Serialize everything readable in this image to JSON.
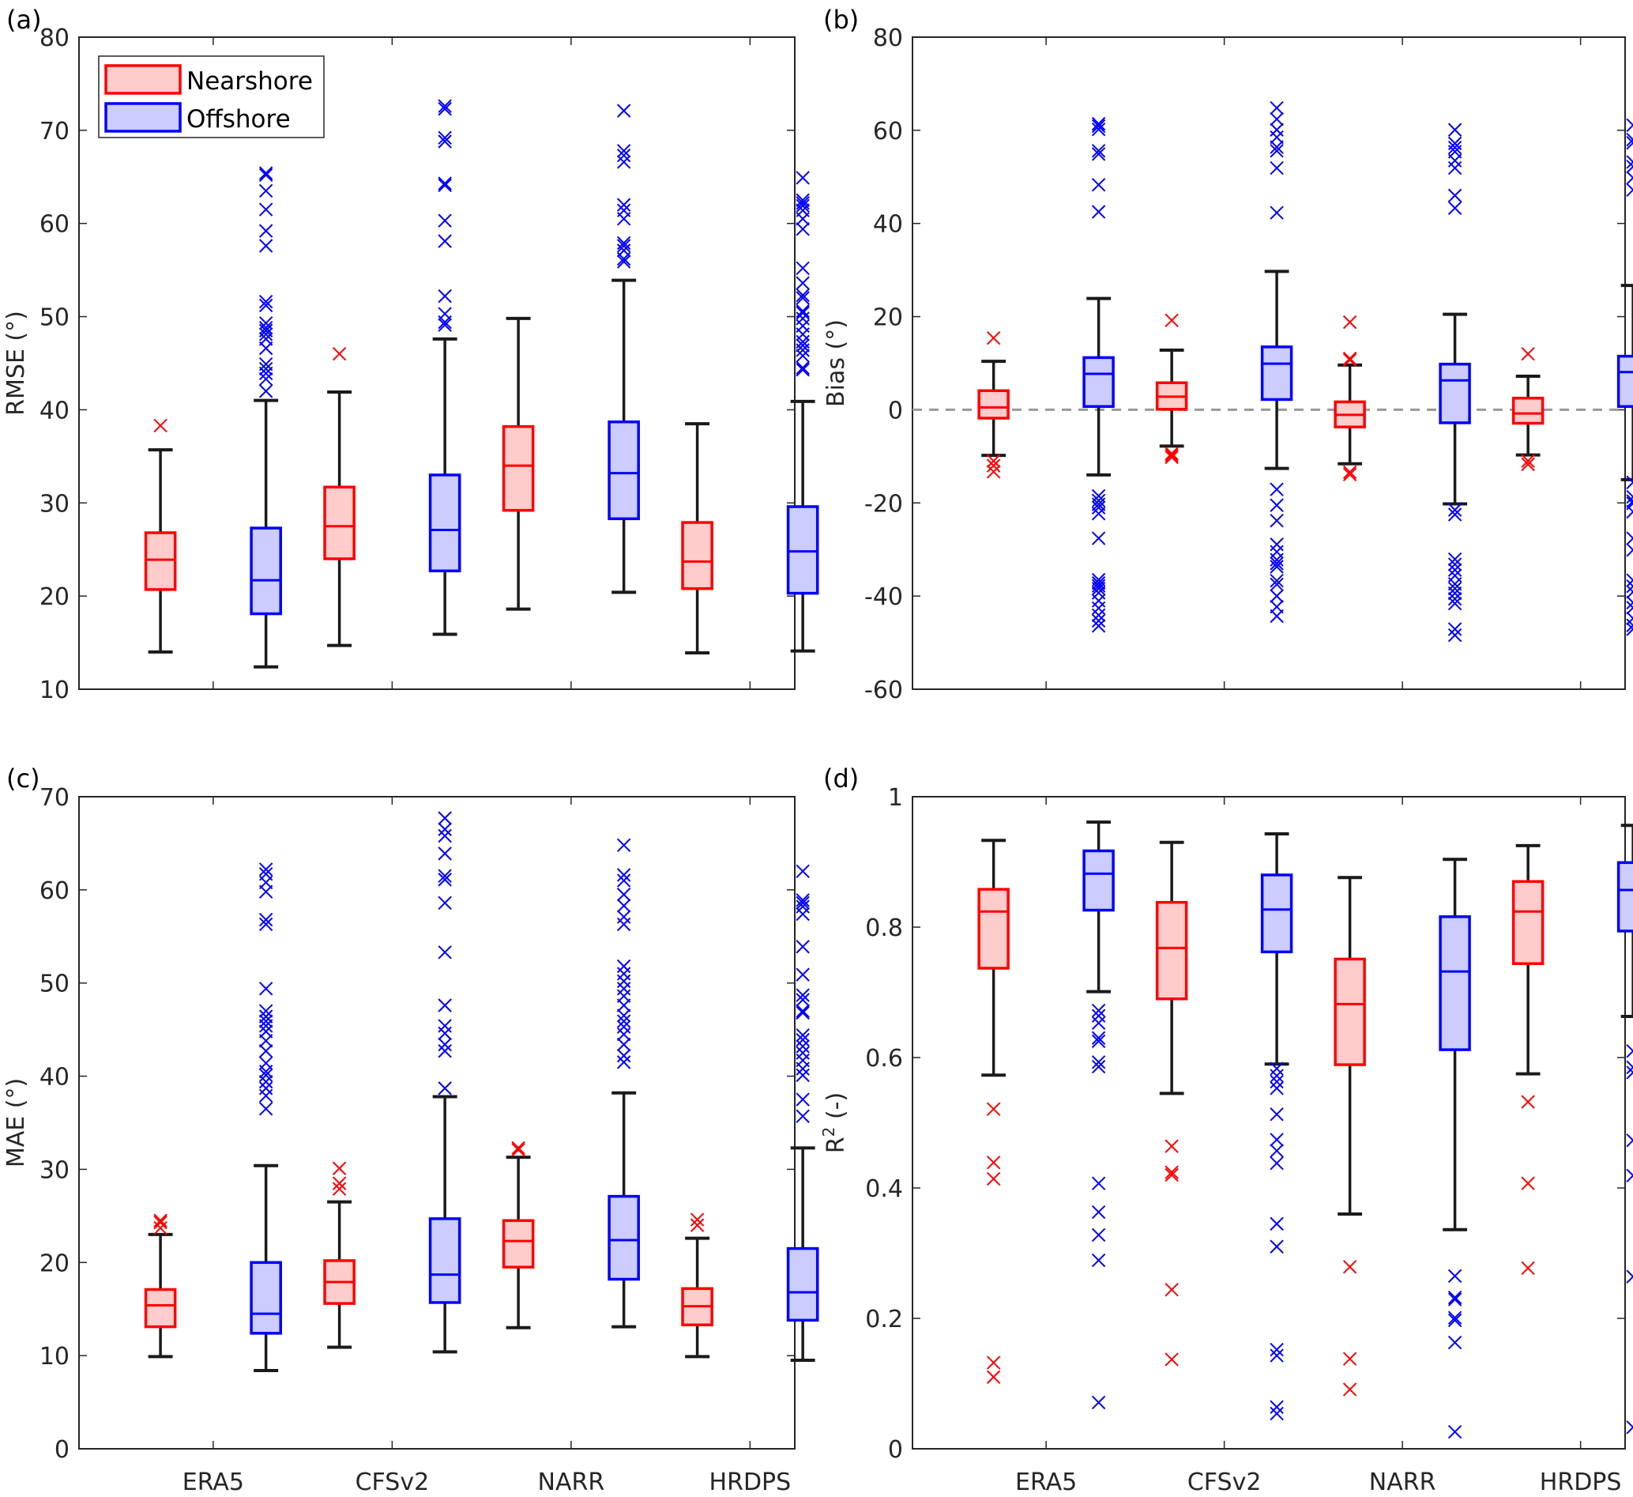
{
  "colors": {
    "nearshore_edge": "#ff0000",
    "nearshore_fill": "#ffcccc",
    "offshore_edge": "#0000ff",
    "offshore_fill": "#ccccff",
    "whisker": "#1a1a1a",
    "zero_line": "#999999"
  },
  "legend": {
    "items": [
      {
        "label": "Nearshore",
        "series": "nearshore"
      },
      {
        "label": "Offshore",
        "series": "offshore"
      }
    ],
    "placement": "top-left of panel (a)"
  },
  "chart_data": [
    {
      "type": "box",
      "panel": "(a)",
      "title": "",
      "xlabel": "",
      "ylabel": "RMSE (°)",
      "ylim": [
        10,
        80
      ],
      "yticks": [
        10,
        20,
        30,
        40,
        50,
        60,
        70,
        80
      ],
      "categories": [
        "ERA5",
        "CFSv2",
        "NARR",
        "HRDPS"
      ],
      "show_xticklabels": false,
      "zero_line": false,
      "series": [
        {
          "name": "Nearshore",
          "boxes": [
            {
              "whisker_low": 14.0,
              "q1": 20.7,
              "median": 23.9,
              "q3": 26.8,
              "whisker_high": 35.7,
              "outliers": [
                38.3
              ]
            },
            {
              "whisker_low": 14.7,
              "q1": 24.0,
              "median": 27.5,
              "q3": 31.7,
              "whisker_high": 41.9,
              "outliers": [
                46.0
              ]
            },
            {
              "whisker_low": 18.6,
              "q1": 29.2,
              "median": 34.0,
              "q3": 38.2,
              "whisker_high": 49.8,
              "outliers": []
            },
            {
              "whisker_low": 13.9,
              "q1": 20.8,
              "median": 23.7,
              "q3": 27.9,
              "whisker_high": 38.5,
              "outliers": []
            }
          ]
        },
        {
          "name": "Offshore",
          "boxes": [
            {
              "whisker_low": 12.4,
              "q1": 18.1,
              "median": 21.7,
              "q3": 27.3,
              "whisker_high": 41.0,
              "outliers": [
                42.0,
                43.3,
                43.9,
                44.4,
                44.9,
                46.6,
                47.6,
                48.1,
                48.5,
                48.8,
                49.3,
                51.2,
                51.6,
                57.6,
                59.2,
                61.5,
                63.5,
                65.2,
                65.4
              ]
            },
            {
              "whisker_low": 15.9,
              "q1": 22.7,
              "median": 27.1,
              "q3": 33.0,
              "whisker_high": 47.6,
              "outliers": [
                49.1,
                49.4,
                50.3,
                52.2,
                58.1,
                60.3,
                64.1,
                64.3,
                68.8,
                69.2,
                72.3,
                72.6
              ]
            },
            {
              "whisker_low": 20.4,
              "q1": 28.3,
              "median": 33.2,
              "q3": 38.7,
              "whisker_high": 53.9,
              "outliers": [
                55.9,
                56.2,
                57.1,
                57.6,
                57.9,
                60.5,
                61.4,
                62.0,
                66.6,
                67.3,
                67.8,
                72.1
              ]
            },
            {
              "whisker_low": 14.1,
              "q1": 20.3,
              "median": 24.8,
              "q3": 29.6,
              "whisker_high": 40.9,
              "outliers": [
                44.3,
                44.5,
                45.8,
                46.4,
                46.9,
                47.3,
                48.1,
                49.0,
                49.8,
                50.4,
                50.6,
                52.0,
                52.3,
                53.6,
                55.2,
                59.4,
                60.5,
                61.4,
                61.9,
                62.2,
                62.5,
                64.9
              ]
            }
          ]
        }
      ]
    },
    {
      "type": "box",
      "panel": "(b)",
      "title": "",
      "xlabel": "",
      "ylabel": "Bias (°)",
      "ylim": [
        -60,
        80
      ],
      "yticks": [
        -60,
        -40,
        -20,
        0,
        20,
        40,
        60,
        80
      ],
      "categories": [
        "ERA5",
        "CFSv2",
        "NARR",
        "HRDPS"
      ],
      "show_xticklabels": false,
      "zero_line": true,
      "series": [
        {
          "name": "Nearshore",
          "boxes": [
            {
              "whisker_low": -9.8,
              "q1": -1.8,
              "median": 0.5,
              "q3": 4.1,
              "whisker_high": 10.4,
              "outliers": [
                15.4,
                -11.0,
                -12.0,
                -13.3
              ]
            },
            {
              "whisker_low": -7.8,
              "q1": 0.1,
              "median": 2.8,
              "q3": 5.8,
              "whisker_high": 12.8,
              "outliers": [
                19.2,
                -9.4,
                -9.8,
                -10.2
              ]
            },
            {
              "whisker_low": -11.6,
              "q1": -3.7,
              "median": -1.1,
              "q3": 1.7,
              "whisker_high": 9.6,
              "outliers": [
                18.8,
                11.0,
                10.7,
                -13.4,
                -13.9
              ]
            },
            {
              "whisker_low": -9.7,
              "q1": -2.9,
              "median": -0.8,
              "q3": 2.5,
              "whisker_high": 7.2,
              "outliers": [
                12.0,
                -11.0,
                -11.7
              ]
            }
          ]
        },
        {
          "name": "Offshore",
          "boxes": [
            {
              "whisker_low": -14.0,
              "q1": 0.7,
              "median": 7.7,
              "q3": 11.2,
              "whisker_high": 23.9,
              "outliers": [
                42.5,
                48.3,
                54.9,
                55.6,
                60.2,
                60.9,
                61.4,
                -18.5,
                -19.5,
                -20.3,
                -21.0,
                -22.3,
                -27.6,
                -36.5,
                -37.2,
                -37.8,
                -38.4,
                -39.3,
                -41.0,
                -42.6,
                -44.1,
                -45.3,
                -46.4
              ]
            },
            {
              "whisker_low": -12.6,
              "q1": 2.2,
              "median": 9.9,
              "q3": 13.5,
              "whisker_high": 29.7,
              "outliers": [
                42.3,
                51.9,
                55.6,
                56.4,
                58.5,
                60.1,
                62.4,
                64.8,
                -17.1,
                -20.5,
                -23.8,
                -28.9,
                -30.5,
                -32.2,
                -33.0,
                -33.7,
                -36.7,
                -37.5,
                -40.0,
                -42.3,
                -44.3
              ]
            },
            {
              "whisker_low": -20.2,
              "q1": -2.8,
              "median": 6.3,
              "q3": 9.8,
              "whisker_high": 20.5,
              "outliers": [
                43.3,
                46.0,
                51.9,
                53.5,
                55.4,
                56.3,
                57.2,
                60.1,
                -21.5,
                -22.5,
                -32.1,
                -33.2,
                -34.4,
                -35.6,
                -37.4,
                -38.4,
                -39.4,
                -40.6,
                -41.6,
                -47.1,
                -48.4
              ]
            },
            {
              "whisker_low": -15.0,
              "q1": 0.7,
              "median": 8.1,
              "q3": 11.5,
              "whisker_high": 26.7,
              "outliers": [
                47.2,
                49.8,
                52.2,
                53.2,
                57.3,
                58.0,
                61.1,
                -15.6,
                -18.7,
                -19.6,
                -20.1,
                -21.9,
                -27.6,
                -30.1,
                -36.6,
                -37.9,
                -39.1,
                -41.4,
                -42.5,
                -44.8,
                -46.3,
                -47.1
              ]
            }
          ]
        }
      ]
    },
    {
      "type": "box",
      "panel": "(c)",
      "title": "",
      "xlabel": "",
      "ylabel": "MAE (°)",
      "ylim": [
        0,
        70
      ],
      "yticks": [
        0,
        10,
        20,
        30,
        40,
        50,
        60,
        70
      ],
      "categories": [
        "ERA5",
        "CFSv2",
        "NARR",
        "HRDPS"
      ],
      "show_xticklabels": true,
      "zero_line": false,
      "series": [
        {
          "name": "Nearshore",
          "boxes": [
            {
              "whisker_low": 9.9,
              "q1": 13.1,
              "median": 15.4,
              "q3": 17.1,
              "whisker_high": 23.0,
              "outliers": [
                23.7,
                24.3,
                24.5
              ]
            },
            {
              "whisker_low": 10.9,
              "q1": 15.6,
              "median": 17.9,
              "q3": 20.2,
              "whisker_high": 26.5,
              "outliers": [
                27.9,
                28.5,
                30.1
              ]
            },
            {
              "whisker_low": 13.0,
              "q1": 19.5,
              "median": 22.3,
              "q3": 24.5,
              "whisker_high": 31.3,
              "outliers": [
                32.1,
                32.3
              ]
            },
            {
              "whisker_low": 9.9,
              "q1": 13.3,
              "median": 15.3,
              "q3": 17.2,
              "whisker_high": 22.6,
              "outliers": [
                24.0,
                24.6
              ]
            }
          ]
        },
        {
          "name": "Offshore",
          "boxes": [
            {
              "whisker_low": 8.4,
              "q1": 12.4,
              "median": 14.5,
              "q3": 20.0,
              "whisker_high": 30.4,
              "outliers": [
                36.5,
                37.9,
                38.7,
                39.4,
                40.1,
                40.5,
                41.4,
                42.7,
                43.8,
                44.8,
                45.4,
                45.9,
                46.4,
                47.0,
                49.4,
                56.3,
                56.8,
                59.8,
                60.8,
                61.7,
                62.2
              ]
            },
            {
              "whisker_low": 10.4,
              "q1": 15.7,
              "median": 18.7,
              "q3": 24.7,
              "whisker_high": 37.8,
              "outliers": [
                38.7,
                42.7,
                43.4,
                44.6,
                45.4,
                47.6,
                53.3,
                58.6,
                61.1,
                61.5,
                63.9,
                65.8,
                66.5,
                67.7
              ]
            },
            {
              "whisker_low": 13.1,
              "q1": 18.2,
              "median": 22.4,
              "q3": 27.1,
              "whisker_high": 38.2,
              "outliers": [
                41.5,
                42.2,
                43.4,
                44.5,
                45.3,
                45.9,
                46.5,
                47.6,
                48.6,
                49.4,
                50.2,
                51.0,
                51.8,
                56.3,
                57.1,
                58.3,
                59.5,
                61.0,
                61.6,
                64.8
              ]
            },
            {
              "whisker_low": 9.5,
              "q1": 13.8,
              "median": 16.8,
              "q3": 21.5,
              "whisker_high": 32.3,
              "outliers": [
                35.7,
                37.5,
                40.1,
                40.8,
                41.7,
                42.5,
                43.2,
                43.9,
                44.4,
                46.8,
                47.0,
                48.2,
                48.7,
                50.9,
                53.9,
                57.4,
                58.2,
                58.6,
                58.9,
                62.0
              ]
            }
          ]
        }
      ]
    },
    {
      "type": "box",
      "panel": "(d)",
      "title": "",
      "xlabel": "",
      "ylabel": "R",
      "ylabel_superscript": "2",
      "ylabel_suffix": " (-)",
      "ylim": [
        0,
        1
      ],
      "yticks": [
        0,
        0.2,
        0.4,
        0.6,
        0.8,
        1
      ],
      "categories": [
        "ERA5",
        "CFSv2",
        "NARR",
        "HRDPS"
      ],
      "show_xticklabels": true,
      "zero_line": false,
      "series": [
        {
          "name": "Nearshore",
          "boxes": [
            {
              "whisker_low": 0.573,
              "q1": 0.737,
              "median": 0.824,
              "q3": 0.858,
              "whisker_high": 0.933,
              "outliers": [
                0.521,
                0.439,
                0.414,
                0.132,
                0.11
              ]
            },
            {
              "whisker_low": 0.545,
              "q1": 0.69,
              "median": 0.768,
              "q3": 0.838,
              "whisker_high": 0.93,
              "outliers": [
                0.464,
                0.424,
                0.42,
                0.244,
                0.137
              ]
            },
            {
              "whisker_low": 0.36,
              "q1": 0.589,
              "median": 0.682,
              "q3": 0.751,
              "whisker_high": 0.876,
              "outliers": [
                0.279,
                0.138,
                0.091
              ]
            },
            {
              "whisker_low": 0.575,
              "q1": 0.744,
              "median": 0.824,
              "q3": 0.87,
              "whisker_high": 0.925,
              "outliers": [
                0.532,
                0.407,
                0.277
              ]
            }
          ]
        },
        {
          "name": "Offshore",
          "boxes": [
            {
              "whisker_low": 0.701,
              "q1": 0.826,
              "median": 0.882,
              "q3": 0.917,
              "whisker_high": 0.961,
              "outliers": [
                0.672,
                0.664,
                0.653,
                0.63,
                0.625,
                0.593,
                0.586,
                0.407,
                0.363,
                0.328,
                0.289,
                0.071
              ]
            },
            {
              "whisker_low": 0.59,
              "q1": 0.762,
              "median": 0.827,
              "q3": 0.88,
              "whisker_high": 0.943,
              "outliers": [
                0.583,
                0.572,
                0.563,
                0.553,
                0.513,
                0.474,
                0.457,
                0.438,
                0.345,
                0.31,
                0.152,
                0.143,
                0.064,
                0.054
              ]
            },
            {
              "whisker_low": 0.336,
              "q1": 0.612,
              "median": 0.732,
              "q3": 0.816,
              "whisker_high": 0.904,
              "outliers": [
                0.265,
                0.232,
                0.229,
                0.201,
                0.197,
                0.163,
                0.026
              ]
            },
            {
              "whisker_low": 0.663,
              "q1": 0.794,
              "median": 0.857,
              "q3": 0.899,
              "whisker_high": 0.956,
              "outliers": [
                0.61,
                0.585,
                0.577,
                0.473,
                0.419,
                0.264,
                0.033
              ]
            }
          ]
        }
      ]
    }
  ]
}
